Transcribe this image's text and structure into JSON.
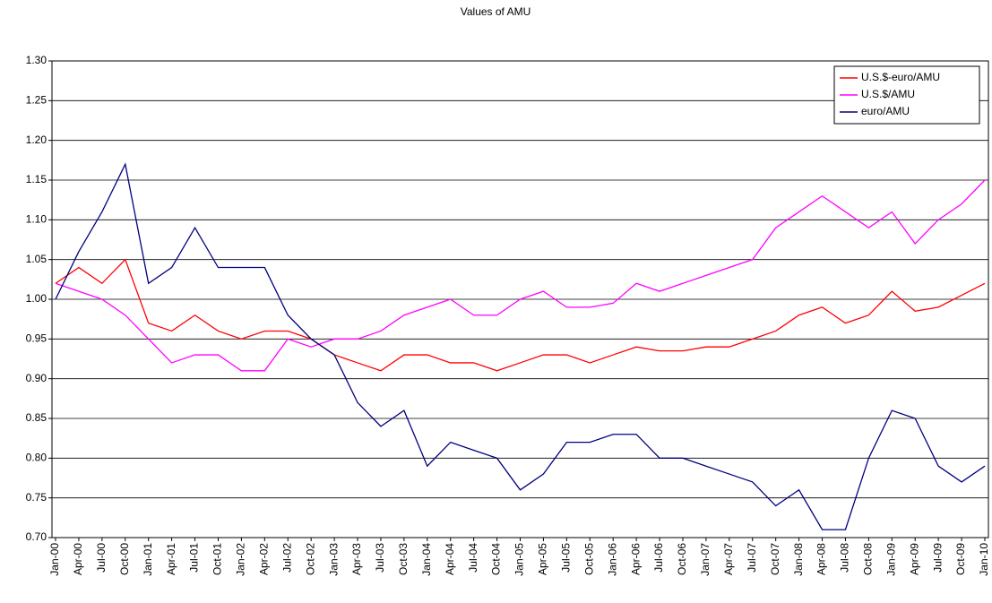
{
  "chart_data": {
    "type": "line",
    "title": "Values of AMU",
    "categories": [
      "Jan-00",
      "Apr-00",
      "Jul-00",
      "Oct-00",
      "Jan-01",
      "Apr-01",
      "Jul-01",
      "Oct-01",
      "Jan-02",
      "Apr-02",
      "Jul-02",
      "Oct-02",
      "Jan-03",
      "Apr-03",
      "Jul-03",
      "Oct-03",
      "Jan-04",
      "Apr-04",
      "Jul-04",
      "Oct-04",
      "Jan-05",
      "Apr-05",
      "Jul-05",
      "Oct-05",
      "Jan-06",
      "Apr-06",
      "Jul-06",
      "Oct-06",
      "Jan-07",
      "Apr-07",
      "Jul-07",
      "Oct-07",
      "Jan-08",
      "Apr-08",
      "Jul-08",
      "Oct-08",
      "Jan-09",
      "Apr-09",
      "Jul-09",
      "Oct-09",
      "Jan-10"
    ],
    "series": [
      {
        "name": "U.S.$-euro/AMU",
        "color": "#ff0000",
        "values": [
          1.02,
          1.04,
          1.02,
          1.05,
          0.97,
          0.96,
          0.98,
          0.96,
          0.95,
          0.96,
          0.96,
          0.95,
          0.93,
          0.92,
          0.91,
          0.93,
          0.93,
          0.92,
          0.92,
          0.91,
          0.92,
          0.93,
          0.93,
          0.92,
          0.93,
          0.94,
          0.935,
          0.935,
          0.94,
          0.94,
          0.95,
          0.96,
          0.98,
          0.99,
          0.97,
          0.98,
          1.01,
          0.985,
          0.99,
          1.005,
          1.02
        ]
      },
      {
        "name": "U.S.$/AMU",
        "color": "#ff00ff",
        "values": [
          1.02,
          1.01,
          1.0,
          0.98,
          0.95,
          0.92,
          0.93,
          0.93,
          0.91,
          0.91,
          0.95,
          0.94,
          0.95,
          0.95,
          0.96,
          0.98,
          0.99,
          1.0,
          0.98,
          0.98,
          1.0,
          1.01,
          0.99,
          0.99,
          0.995,
          1.02,
          1.01,
          1.02,
          1.03,
          1.04,
          1.05,
          1.09,
          1.11,
          1.13,
          1.11,
          1.09,
          1.11,
          1.07,
          1.1,
          1.12,
          1.15
        ]
      },
      {
        "name": "euro/AMU",
        "color": "#000080",
        "values": [
          1.0,
          1.06,
          1.11,
          1.17,
          1.02,
          1.04,
          1.09,
          1.04,
          1.04,
          1.04,
          0.98,
          0.95,
          0.93,
          0.87,
          0.84,
          0.86,
          0.79,
          0.82,
          0.81,
          0.8,
          0.76,
          0.78,
          0.82,
          0.82,
          0.83,
          0.83,
          0.8,
          0.8,
          0.79,
          0.78,
          0.77,
          0.74,
          0.76,
          0.71,
          0.71,
          0.8,
          0.86,
          0.85,
          0.79,
          0.77,
          0.79
        ]
      }
    ],
    "ylim": [
      0.7,
      1.3
    ],
    "yticks": [
      {
        "value": 0.7,
        "label": "0.70"
      },
      0.75,
      {
        "value": 0.8,
        "label": "0.80"
      },
      0.85,
      {
        "value": 0.9,
        "label": "0.90"
      },
      0.95,
      {
        "value": 1.0,
        "label": "1.00"
      },
      1.05,
      {
        "value": 1.1,
        "label": "1.10"
      },
      1.15,
      {
        "value": 1.2,
        "label": "1.20"
      },
      1.25,
      {
        "value": 1.3,
        "label": "1.30"
      }
    ],
    "grid": true,
    "legend": "top-right"
  }
}
